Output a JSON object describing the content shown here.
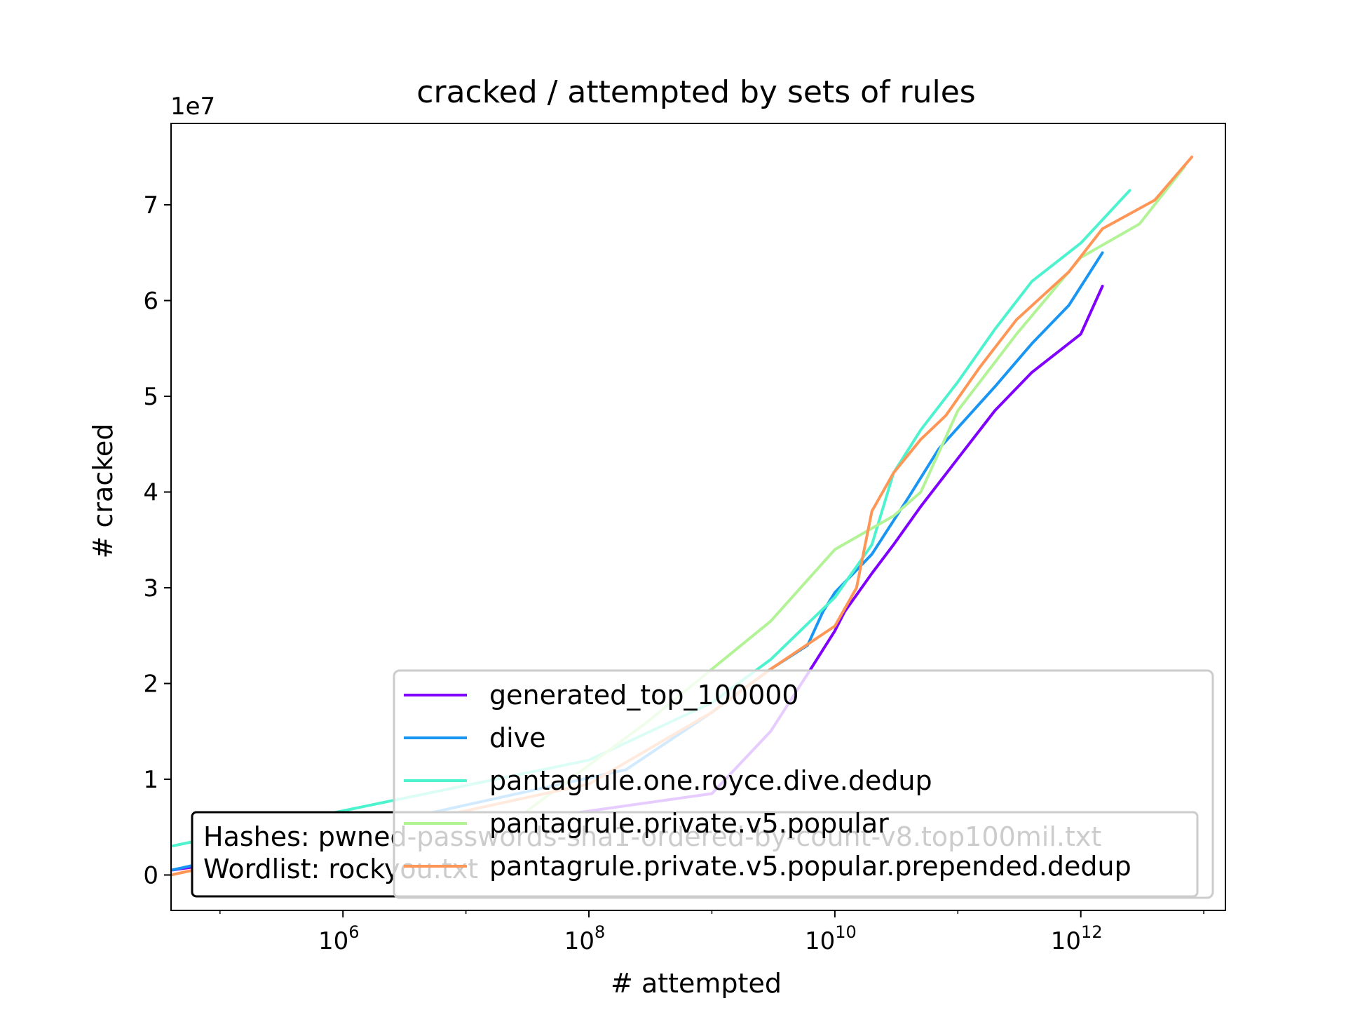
{
  "chart_data": {
    "type": "line",
    "title": "cracked / attempted by sets of rules",
    "xlabel": "# attempted",
    "ylabel": "# cracked",
    "x_scale": "log",
    "xlim": [
      40000,
      15000000000000
    ],
    "ylim": [
      -3700000,
      78500000
    ],
    "y_offset_label": "1e7",
    "y_ticks": [
      0,
      10000000,
      20000000,
      30000000,
      40000000,
      50000000,
      60000000,
      70000000
    ],
    "y_tick_labels": [
      "0",
      "1",
      "2",
      "3",
      "4",
      "5",
      "6",
      "7"
    ],
    "x_ticks": [
      {
        "value": 1000000,
        "base": "10",
        "exp": "6"
      },
      {
        "value": 100000000,
        "base": "10",
        "exp": "8"
      },
      {
        "value": 10000000000,
        "base": "10",
        "exp": "10"
      },
      {
        "value": 1000000000000,
        "base": "10",
        "exp": "12"
      }
    ],
    "grid": false,
    "legend_position": "lower-right",
    "series": [
      {
        "name": "generated_top_100000",
        "color": "#8000ff",
        "points": [
          [
            40000,
            500000
          ],
          [
            1000000000,
            8500000
          ],
          [
            3000000000,
            15000000
          ],
          [
            6000000000,
            21000000
          ],
          [
            10000000000,
            25500000
          ],
          [
            12000000000,
            27500000
          ],
          [
            20000000000,
            31500000
          ],
          [
            30000000000,
            34500000
          ],
          [
            50000000000,
            38500000
          ],
          [
            100000000000,
            43500000
          ],
          [
            200000000000,
            48500000
          ],
          [
            400000000000,
            52500000
          ],
          [
            1000000000000,
            56500000
          ],
          [
            1500000000000,
            61500000
          ]
        ]
      },
      {
        "name": "dive",
        "color": "#1996f3",
        "points": [
          [
            40000,
            500000
          ],
          [
            200000000,
            11000000
          ],
          [
            1000000000,
            17000000
          ],
          [
            3000000000,
            21500000
          ],
          [
            6000000000,
            24000000
          ],
          [
            8000000000,
            27500000
          ],
          [
            10000000000,
            29500000
          ],
          [
            20000000000,
            33500000
          ],
          [
            40000000000,
            39500000
          ],
          [
            70000000000,
            44500000
          ],
          [
            200000000000,
            51000000
          ],
          [
            400000000000,
            55500000
          ],
          [
            800000000000,
            59500000
          ],
          [
            1500000000000,
            65000000
          ]
        ]
      },
      {
        "name": "pantagrule.one.royce.dive.dedup",
        "color": "#4df3ce",
        "points": [
          [
            40000,
            3000000
          ],
          [
            100000000,
            12000000
          ],
          [
            1000000000,
            18000000
          ],
          [
            3000000000,
            22500000
          ],
          [
            10000000000,
            29000000
          ],
          [
            20000000000,
            34500000
          ],
          [
            30000000000,
            42000000
          ],
          [
            50000000000,
            46500000
          ],
          [
            100000000000,
            51500000
          ],
          [
            200000000000,
            57000000
          ],
          [
            400000000000,
            62000000
          ],
          [
            1000000000000,
            66000000
          ],
          [
            2500000000000,
            71500000
          ]
        ]
      },
      {
        "name": "pantagrule.private.v5.popular",
        "color": "#b2f396",
        "points": [
          [
            30000000,
            6500000
          ],
          [
            300000000,
            16000000
          ],
          [
            1000000000,
            21500000
          ],
          [
            3000000000,
            26500000
          ],
          [
            10000000000,
            34000000
          ],
          [
            30000000000,
            37500000
          ],
          [
            50000000000,
            40000000
          ],
          [
            100000000000,
            48500000
          ],
          [
            300000000000,
            56500000
          ],
          [
            1000000000000,
            64500000
          ],
          [
            3000000000000,
            68000000
          ],
          [
            7000000000000,
            74000000
          ]
        ]
      },
      {
        "name": "pantagrule.private.v5.popular.prepended.dedup",
        "color": "#ff9656",
        "points": [
          [
            40000,
            0
          ],
          [
            100000000,
            9500000
          ],
          [
            1000000000,
            17000000
          ],
          [
            3000000000,
            21500000
          ],
          [
            10000000000,
            26000000
          ],
          [
            15000000000,
            30000000
          ],
          [
            20000000000,
            38000000
          ],
          [
            30000000000,
            42000000
          ],
          [
            50000000000,
            45500000
          ],
          [
            80000000000,
            48000000
          ],
          [
            150000000000,
            53000000
          ],
          [
            300000000000,
            58000000
          ],
          [
            800000000000,
            63000000
          ],
          [
            1500000000000,
            67500000
          ],
          [
            4000000000000,
            70500000
          ],
          [
            8000000000000,
            75000000
          ]
        ]
      }
    ],
    "annotation": {
      "lines": [
        "Hashes: pwned-passwords-sha1-ordered-by-count-v8.top100mil.txt",
        "Wordlist: rockyou.txt"
      ]
    }
  }
}
